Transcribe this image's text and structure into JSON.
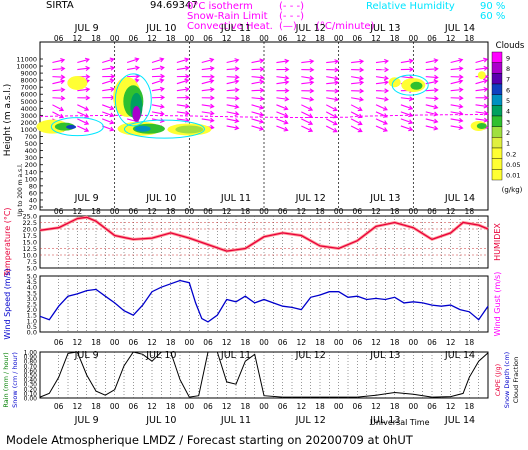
{
  "header": {
    "station": "SIRTA",
    "coords": "94.69347",
    "isotherm_label": "0°C isotherm",
    "isotherm_sym": "(- - -)",
    "snowrain_label": "Snow-Rain Limit",
    "snowrain_sym": "(- - -)",
    "convective_label": "Convective Heat.",
    "convective_sym": "(—)",
    "convective_unit": "(°C/minute)",
    "rh_label": "Relative Humidity",
    "rh90": "90 %",
    "rh60": "60 %"
  },
  "days": [
    "JUL 9",
    "JUL 10",
    "JUL 11",
    "JUL 12",
    "JUL 13",
    "JUL 14"
  ],
  "hour_ticks": [
    "06",
    "12",
    "18",
    "00",
    "06",
    "12",
    "18",
    "00",
    "06",
    "12",
    "18",
    "00",
    "06",
    "12",
    "18",
    "00",
    "06",
    "12",
    "18",
    "00",
    "06",
    "12",
    "18"
  ],
  "footer": {
    "model": "Modele Atmospherique LMDZ / Forecast starting on 20200709 at 0hUT",
    "utc_label": "Universal Time"
  },
  "colors": {
    "magenta": "#ff00ff",
    "cyan": "#00e5ff",
    "red": "#e8003a",
    "blue": "#0000cc",
    "cloud_scale": [
      "#ff00ff",
      "#aa00cc",
      "#5a00b0",
      "#1040c0",
      "#0090c0",
      "#00a060",
      "#30c030",
      "#a0e040",
      "#e0f040",
      "#ffff33"
    ]
  },
  "chart_data": [
    {
      "type": "heatmap",
      "name": "clouds",
      "ylabel": "Height (m a.s.l.)",
      "ylabel_low": "Up to 200 m a.s.l.",
      "y_ticks": [
        "11000",
        "10000",
        "9000",
        "8000",
        "7000",
        "6000",
        "5000",
        "4000",
        "3000",
        "2000",
        "1000",
        "700",
        "500",
        "400",
        "300",
        "200",
        "140",
        "100",
        "80",
        "60",
        "40",
        "20"
      ],
      "legend_title": "Clouds",
      "legend_unit": "(g/kg)",
      "legend_values": [
        "9",
        "8",
        "7",
        "6",
        "5",
        "4",
        "3",
        "2",
        "1",
        "0.2",
        "0.05",
        "0.01"
      ]
    },
    {
      "type": "line",
      "name": "temperature",
      "ylabel": "Temperature (°C)",
      "ylabel_right": "HUMIDEX",
      "ylim": [
        5.0,
        25.0
      ],
      "y_ticks": [
        "25.0",
        "22.5",
        "20.0",
        "17.5",
        "15.0",
        "12.5",
        "10.0",
        "7.5",
        "5.0"
      ],
      "x_hours": [
        0,
        6,
        12,
        15,
        18,
        24,
        30,
        36,
        42,
        48,
        54,
        60,
        66,
        72,
        78,
        84,
        90,
        96,
        102,
        108,
        114,
        120,
        126,
        132,
        136,
        141,
        144
      ],
      "values": [
        19.5,
        20.5,
        24.0,
        24.5,
        23.0,
        17.5,
        16.0,
        16.5,
        18.5,
        16.5,
        14.0,
        11.5,
        12.5,
        17.0,
        18.5,
        17.5,
        13.5,
        12.5,
        15.5,
        21.0,
        22.5,
        20.5,
        16.0,
        18.5,
        22.5,
        21.5,
        20.0
      ]
    },
    {
      "type": "line",
      "name": "wind",
      "ylabel": "Wind Speed (m/s)",
      "ylabel_right": "Wind Gust (m/s)",
      "ylim": [
        0.0,
        5.0
      ],
      "y_ticks": [
        "5.0",
        "4.5",
        "4.0",
        "3.5",
        "3.0",
        "2.5",
        "2.0",
        "1.5",
        "1.0",
        "0.5",
        "0.0"
      ],
      "x_hours": [
        0,
        3,
        6,
        9,
        12,
        15,
        18,
        21,
        24,
        27,
        30,
        33,
        36,
        39,
        42,
        45,
        48,
        50,
        52,
        54,
        57,
        60,
        63,
        66,
        69,
        72,
        75,
        78,
        81,
        84,
        87,
        90,
        93,
        96,
        99,
        102,
        105,
        108,
        111,
        114,
        117,
        120,
        123,
        126,
        129,
        132,
        135,
        138,
        141,
        144
      ],
      "values": [
        1.4,
        1.1,
        2.3,
        3.2,
        3.4,
        3.7,
        3.8,
        3.2,
        2.6,
        1.9,
        1.5,
        2.4,
        3.6,
        4.0,
        4.3,
        4.6,
        4.4,
        2.6,
        1.2,
        0.9,
        1.5,
        2.9,
        2.7,
        3.2,
        2.6,
        2.9,
        2.6,
        2.3,
        2.2,
        2.0,
        3.1,
        3.3,
        3.6,
        3.6,
        3.1,
        3.2,
        2.9,
        3.0,
        2.9,
        3.1,
        2.6,
        2.7,
        2.6,
        2.4,
        2.3,
        2.4,
        2.0,
        1.8,
        1.1,
        2.3
      ]
    },
    {
      "type": "line",
      "name": "rain",
      "ylabel": "Rain (mm / hour)",
      "ylabel2": "Snow (cm / hour)",
      "ylabel_right": "CAPE (J/g)",
      "ylabel_right2": "Snow Depth (cm)",
      "ylabel_right3": "Cloud Fraction",
      "ylim": [
        0.0,
        1.0
      ],
      "y_ticks": [
        "1.00",
        "0.90",
        "0.80",
        "0.70",
        "0.60",
        "0.50",
        "0.40",
        "0.30",
        "0.20",
        "0.10",
        "0.00"
      ],
      "x_hours": [
        0,
        3,
        6,
        9,
        12,
        15,
        18,
        21,
        24,
        27,
        30,
        33,
        36,
        39,
        42,
        45,
        48,
        51,
        54,
        57,
        60,
        63,
        66,
        69,
        72,
        78,
        84,
        90,
        96,
        102,
        108,
        114,
        120,
        126,
        132,
        136,
        138,
        141,
        144
      ],
      "values": [
        0.02,
        0.1,
        0.45,
        0.97,
        1.02,
        0.5,
        0.15,
        0.06,
        0.18,
        0.7,
        1.02,
        0.95,
        0.8,
        1.02,
        1.02,
        0.4,
        0.02,
        0.05,
        1.02,
        1.02,
        0.35,
        0.3,
        0.8,
        0.95,
        0.05,
        0.02,
        0.02,
        0.02,
        0.02,
        0.02,
        0.06,
        0.12,
        0.08,
        0.02,
        0.03,
        0.1,
        0.45,
        0.8,
        0.98
      ]
    }
  ]
}
